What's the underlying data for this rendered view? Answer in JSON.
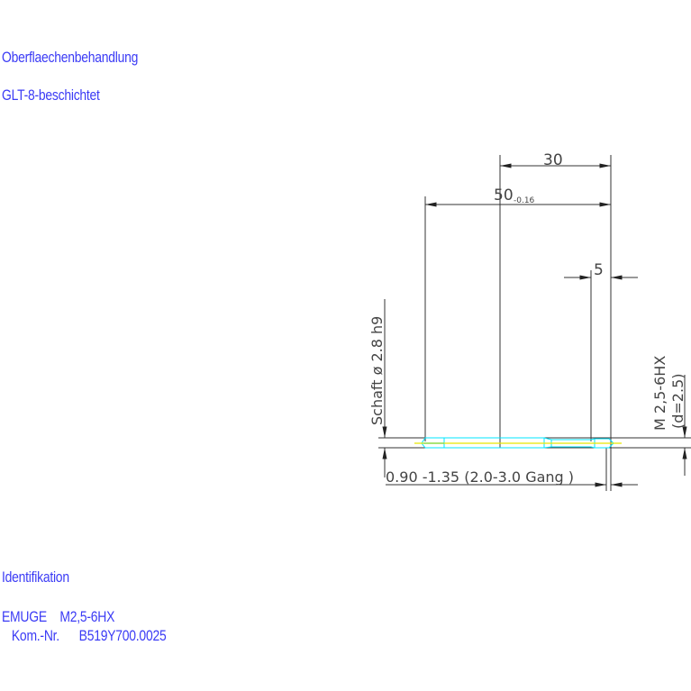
{
  "header": {
    "surface_label": "Oberflaechenbehandlung",
    "surface_value": "GLT-8-beschichtet"
  },
  "footer": {
    "ident_label": "Identifikation",
    "maker_line": "EMUGE    M2,5-6HX",
    "part_line": "   Kom.-Nr.      B519Y700.0025"
  },
  "drawing": {
    "dim_30": "30",
    "dim_50": "50",
    "dim_50_tolerance": "-0.16",
    "dim_5": "5",
    "shank_label": "Schaft  ø 2.8  h9",
    "thread_label": "M 2,5-6HX",
    "thread_diameter": "(d=2.5)",
    "chamfer_label": "0.90 -1.35 (2.0-3.0 Gang   )",
    "colors": {
      "text": "#3b3bf5",
      "outline": "#00e5ff",
      "centerline": "#e8e800",
      "dimension": "#333333"
    }
  }
}
